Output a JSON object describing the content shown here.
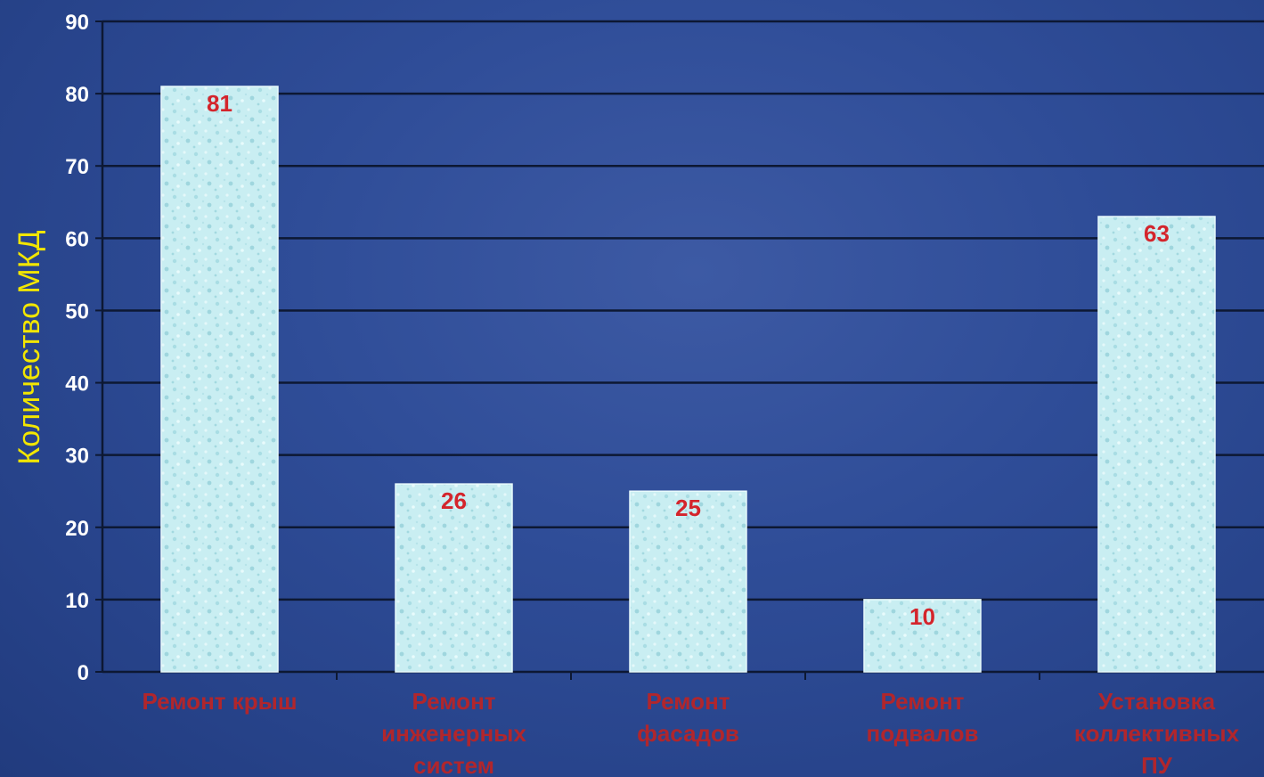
{
  "chart_data": {
    "type": "bar",
    "categories": [
      [
        "Ремонт крыш"
      ],
      [
        "Ремонт",
        "инженерных",
        "систем"
      ],
      [
        "Ремонт",
        "фасадов"
      ],
      [
        "Ремонт",
        "подвалов"
      ],
      [
        "Установка",
        "коллективных",
        "ПУ"
      ]
    ],
    "values": [
      81,
      26,
      25,
      10,
      63
    ],
    "ylabel": "Количество МКД",
    "ylim": [
      0,
      90
    ],
    "yticks": [
      0,
      10,
      20,
      30,
      40,
      50,
      60,
      70,
      80,
      90
    ],
    "grid": true,
    "data_labels": true,
    "colors": {
      "background": "#2c4a93",
      "bar_fill": "#c9eef2",
      "bar_accent": "#8fd0d8",
      "gridline": "#0d1833",
      "axis_text": "#ffffff",
      "ylabel_text": "#f2e600",
      "data_label_text": "#d4252c",
      "category_text": "#b1262c"
    }
  }
}
